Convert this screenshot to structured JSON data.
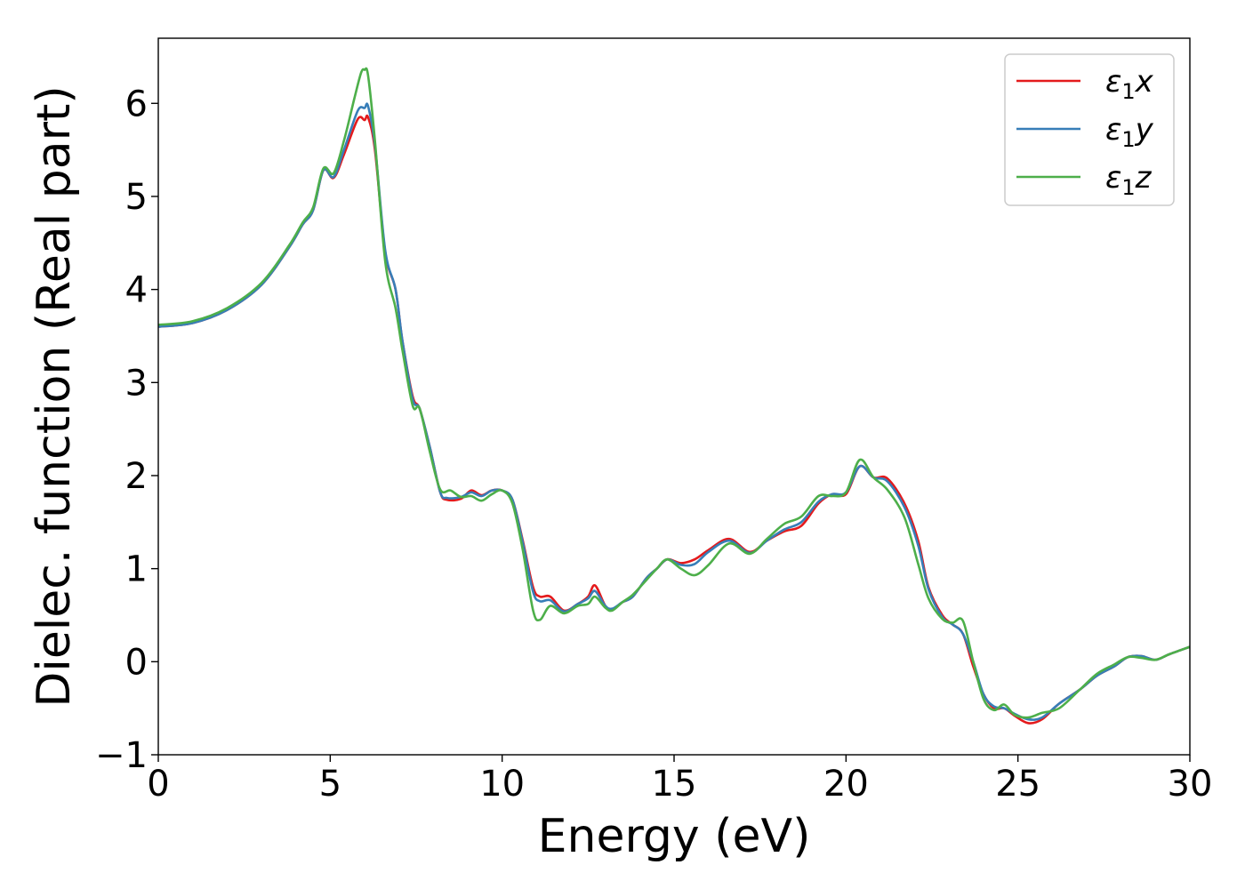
{
  "chart_data": {
    "type": "line",
    "title": "",
    "xlabel": "Energy (eV)",
    "ylabel": "Dielec. function (Real part)",
    "xlim": [
      0,
      30
    ],
    "ylim": [
      -1,
      6.7
    ],
    "x_ticks": [
      0,
      5,
      10,
      15,
      20,
      25,
      30
    ],
    "y_ticks": [
      -1,
      0,
      1,
      2,
      3,
      4,
      5,
      6
    ],
    "x_tick_labels": [
      "0",
      "5",
      "10",
      "15",
      "20",
      "25",
      "30"
    ],
    "y_tick_labels": [
      "−1",
      "0",
      "1",
      "2",
      "3",
      "4",
      "5",
      "6"
    ],
    "grid": false,
    "legend_position": "top-right",
    "series": [
      {
        "name": "ε₁x",
        "legend_base": "ε",
        "legend_sub": "1",
        "legend_suffix": "x",
        "color": "#e41a1c",
        "points": [
          [
            0,
            3.6
          ],
          [
            1,
            3.64
          ],
          [
            2,
            3.78
          ],
          [
            3,
            4.05
          ],
          [
            3.8,
            4.45
          ],
          [
            4.2,
            4.7
          ],
          [
            4.5,
            4.85
          ],
          [
            4.8,
            5.28
          ],
          [
            5.1,
            5.2
          ],
          [
            5.4,
            5.45
          ],
          [
            5.8,
            5.83
          ],
          [
            6.0,
            5.82
          ],
          [
            6.1,
            5.85
          ],
          [
            6.3,
            5.5
          ],
          [
            6.6,
            4.4
          ],
          [
            6.9,
            4.0
          ],
          [
            7.1,
            3.45
          ],
          [
            7.4,
            2.85
          ],
          [
            7.6,
            2.72
          ],
          [
            7.9,
            2.3
          ],
          [
            8.2,
            1.82
          ],
          [
            8.4,
            1.74
          ],
          [
            8.8,
            1.75
          ],
          [
            9.1,
            1.84
          ],
          [
            9.4,
            1.79
          ],
          [
            9.7,
            1.84
          ],
          [
            10.0,
            1.84
          ],
          [
            10.3,
            1.74
          ],
          [
            10.6,
            1.3
          ],
          [
            10.9,
            0.8
          ],
          [
            11.1,
            0.7
          ],
          [
            11.4,
            0.7
          ],
          [
            11.8,
            0.55
          ],
          [
            12.2,
            0.62
          ],
          [
            12.5,
            0.7
          ],
          [
            12.7,
            0.82
          ],
          [
            13.0,
            0.6
          ],
          [
            13.2,
            0.56
          ],
          [
            13.5,
            0.64
          ],
          [
            13.8,
            0.7
          ],
          [
            14.2,
            0.9
          ],
          [
            14.5,
            1.0
          ],
          [
            14.8,
            1.1
          ],
          [
            15.2,
            1.06
          ],
          [
            15.6,
            1.1
          ],
          [
            16.0,
            1.2
          ],
          [
            16.6,
            1.32
          ],
          [
            17.2,
            1.18
          ],
          [
            17.7,
            1.3
          ],
          [
            18.2,
            1.4
          ],
          [
            18.7,
            1.46
          ],
          [
            19.2,
            1.7
          ],
          [
            19.6,
            1.8
          ],
          [
            20.0,
            1.8
          ],
          [
            20.4,
            2.1
          ],
          [
            20.8,
            1.98
          ],
          [
            21.2,
            1.97
          ],
          [
            21.7,
            1.7
          ],
          [
            22.1,
            1.3
          ],
          [
            22.4,
            0.8
          ],
          [
            22.8,
            0.5
          ],
          [
            23.1,
            0.4
          ],
          [
            23.4,
            0.3
          ],
          [
            23.7,
            -0.05
          ],
          [
            24.0,
            -0.35
          ],
          [
            24.3,
            -0.5
          ],
          [
            24.6,
            -0.5
          ],
          [
            24.9,
            -0.58
          ],
          [
            25.3,
            -0.66
          ],
          [
            25.7,
            -0.62
          ],
          [
            26.2,
            -0.45
          ],
          [
            26.8,
            -0.3
          ],
          [
            27.3,
            -0.15
          ],
          [
            27.8,
            -0.05
          ],
          [
            28.2,
            0.05
          ],
          [
            28.6,
            0.06
          ],
          [
            29.0,
            0.02
          ],
          [
            29.4,
            0.08
          ],
          [
            30,
            0.16
          ]
        ]
      },
      {
        "name": "ε₁y",
        "legend_base": "ε",
        "legend_sub": "1",
        "legend_suffix": "y",
        "color": "#377eb8",
        "points": [
          [
            0,
            3.6
          ],
          [
            1,
            3.64
          ],
          [
            2,
            3.78
          ],
          [
            3,
            4.05
          ],
          [
            3.8,
            4.45
          ],
          [
            4.2,
            4.7
          ],
          [
            4.5,
            4.85
          ],
          [
            4.8,
            5.28
          ],
          [
            5.1,
            5.21
          ],
          [
            5.4,
            5.5
          ],
          [
            5.8,
            5.92
          ],
          [
            6.0,
            5.95
          ],
          [
            6.1,
            5.97
          ],
          [
            6.3,
            5.55
          ],
          [
            6.6,
            4.42
          ],
          [
            6.9,
            4.0
          ],
          [
            7.1,
            3.45
          ],
          [
            7.4,
            2.82
          ],
          [
            7.6,
            2.72
          ],
          [
            7.9,
            2.3
          ],
          [
            8.2,
            1.82
          ],
          [
            8.4,
            1.76
          ],
          [
            8.8,
            1.77
          ],
          [
            9.1,
            1.82
          ],
          [
            9.4,
            1.78
          ],
          [
            9.7,
            1.84
          ],
          [
            10.0,
            1.84
          ],
          [
            10.3,
            1.74
          ],
          [
            10.6,
            1.28
          ],
          [
            10.9,
            0.75
          ],
          [
            11.1,
            0.65
          ],
          [
            11.4,
            0.66
          ],
          [
            11.8,
            0.54
          ],
          [
            12.2,
            0.62
          ],
          [
            12.5,
            0.68
          ],
          [
            12.7,
            0.76
          ],
          [
            13.0,
            0.6
          ],
          [
            13.2,
            0.57
          ],
          [
            13.5,
            0.64
          ],
          [
            13.8,
            0.7
          ],
          [
            14.2,
            0.9
          ],
          [
            14.5,
            1.0
          ],
          [
            14.8,
            1.1
          ],
          [
            15.2,
            1.04
          ],
          [
            15.6,
            1.05
          ],
          [
            16.0,
            1.18
          ],
          [
            16.6,
            1.3
          ],
          [
            17.2,
            1.17
          ],
          [
            17.7,
            1.3
          ],
          [
            18.2,
            1.42
          ],
          [
            18.7,
            1.5
          ],
          [
            19.2,
            1.72
          ],
          [
            19.6,
            1.8
          ],
          [
            20.0,
            1.82
          ],
          [
            20.4,
            2.1
          ],
          [
            20.8,
            1.98
          ],
          [
            21.2,
            1.94
          ],
          [
            21.7,
            1.66
          ],
          [
            22.1,
            1.25
          ],
          [
            22.4,
            0.78
          ],
          [
            22.8,
            0.48
          ],
          [
            23.1,
            0.4
          ],
          [
            23.4,
            0.3
          ],
          [
            23.7,
            0.0
          ],
          [
            24.0,
            -0.35
          ],
          [
            24.3,
            -0.48
          ],
          [
            24.6,
            -0.5
          ],
          [
            24.9,
            -0.56
          ],
          [
            25.3,
            -0.62
          ],
          [
            25.7,
            -0.6
          ],
          [
            26.2,
            -0.45
          ],
          [
            26.8,
            -0.3
          ],
          [
            27.3,
            -0.15
          ],
          [
            27.8,
            -0.05
          ],
          [
            28.2,
            0.05
          ],
          [
            28.6,
            0.06
          ],
          [
            29.0,
            0.02
          ],
          [
            29.4,
            0.08
          ],
          [
            30,
            0.16
          ]
        ]
      },
      {
        "name": "ε₁z",
        "legend_base": "ε",
        "legend_sub": "1",
        "legend_suffix": "z",
        "color": "#4daf4a",
        "points": [
          [
            0,
            3.62
          ],
          [
            1,
            3.66
          ],
          [
            2,
            3.8
          ],
          [
            3,
            4.07
          ],
          [
            3.8,
            4.47
          ],
          [
            4.2,
            4.72
          ],
          [
            4.5,
            4.88
          ],
          [
            4.8,
            5.3
          ],
          [
            5.1,
            5.25
          ],
          [
            5.4,
            5.6
          ],
          [
            5.7,
            6.05
          ],
          [
            5.9,
            6.33
          ],
          [
            6.0,
            6.36
          ],
          [
            6.1,
            6.3
          ],
          [
            6.3,
            5.6
          ],
          [
            6.6,
            4.3
          ],
          [
            6.9,
            3.8
          ],
          [
            7.1,
            3.35
          ],
          [
            7.4,
            2.75
          ],
          [
            7.6,
            2.72
          ],
          [
            7.9,
            2.25
          ],
          [
            8.2,
            1.85
          ],
          [
            8.5,
            1.84
          ],
          [
            8.8,
            1.77
          ],
          [
            9.1,
            1.78
          ],
          [
            9.4,
            1.73
          ],
          [
            9.7,
            1.8
          ],
          [
            10.0,
            1.84
          ],
          [
            10.3,
            1.7
          ],
          [
            10.6,
            1.2
          ],
          [
            10.9,
            0.55
          ],
          [
            11.1,
            0.45
          ],
          [
            11.4,
            0.6
          ],
          [
            11.8,
            0.52
          ],
          [
            12.2,
            0.6
          ],
          [
            12.5,
            0.62
          ],
          [
            12.7,
            0.7
          ],
          [
            13.0,
            0.58
          ],
          [
            13.2,
            0.55
          ],
          [
            13.5,
            0.64
          ],
          [
            13.8,
            0.72
          ],
          [
            14.2,
            0.88
          ],
          [
            14.5,
            1.0
          ],
          [
            14.8,
            1.1
          ],
          [
            15.2,
            1.0
          ],
          [
            15.6,
            0.93
          ],
          [
            16.0,
            1.04
          ],
          [
            16.6,
            1.27
          ],
          [
            17.2,
            1.16
          ],
          [
            17.7,
            1.32
          ],
          [
            18.2,
            1.48
          ],
          [
            18.7,
            1.56
          ],
          [
            19.2,
            1.78
          ],
          [
            19.6,
            1.78
          ],
          [
            20.0,
            1.82
          ],
          [
            20.4,
            2.17
          ],
          [
            20.8,
            1.98
          ],
          [
            21.2,
            1.85
          ],
          [
            21.7,
            1.55
          ],
          [
            22.1,
            1.05
          ],
          [
            22.4,
            0.68
          ],
          [
            22.8,
            0.46
          ],
          [
            23.1,
            0.42
          ],
          [
            23.4,
            0.44
          ],
          [
            23.7,
            0.0
          ],
          [
            24.0,
            -0.4
          ],
          [
            24.3,
            -0.52
          ],
          [
            24.6,
            -0.46
          ],
          [
            24.9,
            -0.57
          ],
          [
            25.3,
            -0.6
          ],
          [
            25.7,
            -0.55
          ],
          [
            26.2,
            -0.5
          ],
          [
            26.8,
            -0.3
          ],
          [
            27.3,
            -0.13
          ],
          [
            27.8,
            -0.03
          ],
          [
            28.2,
            0.05
          ],
          [
            28.6,
            0.04
          ],
          [
            29.0,
            0.02
          ],
          [
            29.4,
            0.08
          ],
          [
            30,
            0.16
          ]
        ]
      }
    ]
  }
}
